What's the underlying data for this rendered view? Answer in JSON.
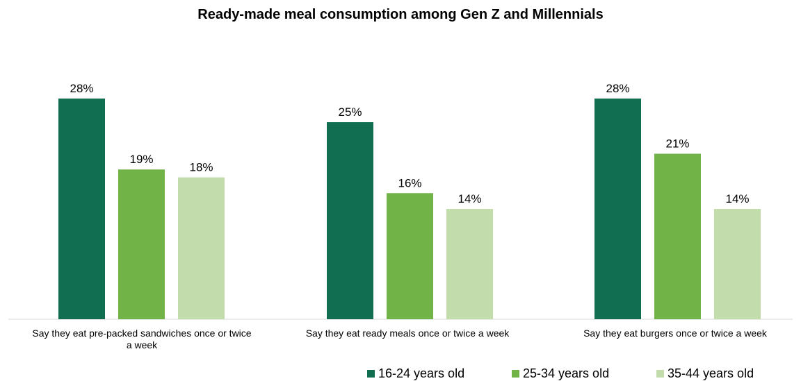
{
  "chart_data": {
    "type": "bar",
    "title": "Ready-made meal consumption among Gen Z and Millennials",
    "categories": [
      "Say they eat pre-packed sandwiches once or twice a week",
      "Say they eat ready meals once or twice a week",
      "Say they eat burgers once or twice a week"
    ],
    "series": [
      {
        "name": "16-24 years old",
        "color": "#116e51",
        "values": [
          28,
          25,
          28
        ]
      },
      {
        "name": "25-34 years old",
        "color": "#72b347",
        "values": [
          19,
          16,
          21
        ]
      },
      {
        "name": "35-44 years old",
        "color": "#c3dcac",
        "values": [
          18,
          14,
          14
        ]
      }
    ],
    "value_suffix": "%",
    "xlabel": "",
    "ylabel": "",
    "ylim": [
      0,
      28
    ],
    "grid": false,
    "legend_position": "bottom-right"
  }
}
